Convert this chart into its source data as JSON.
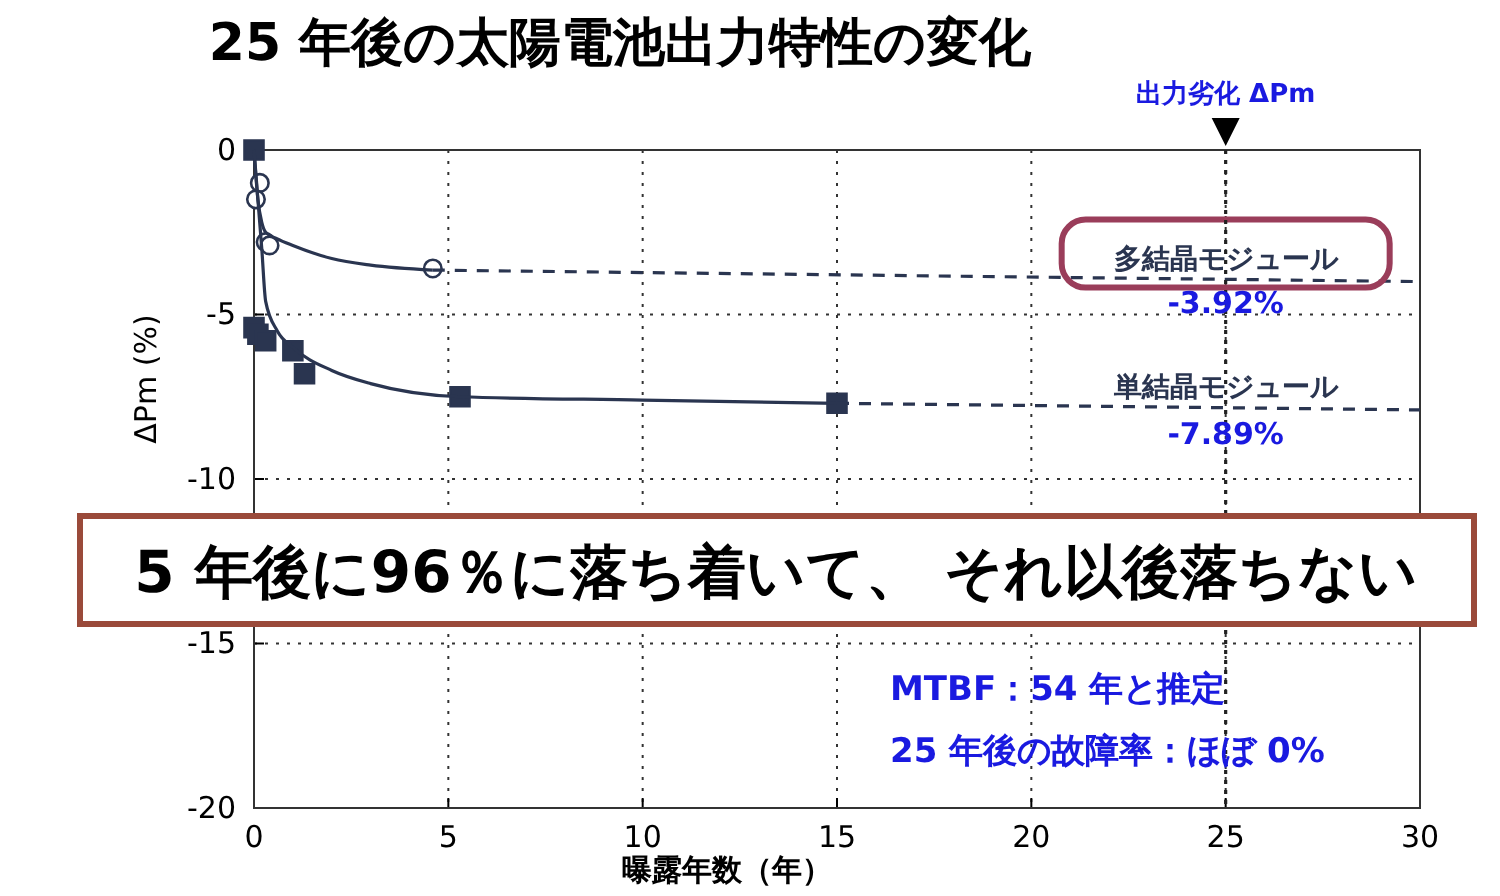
{
  "chart_data": {
    "type": "line",
    "title": "25 年後の太陽電池出力特性の変化",
    "xlabel": "曝露年数（年）",
    "ylabel": "ΔPm (%)",
    "xlim": [
      0,
      30
    ],
    "ylim": [
      -20,
      0
    ],
    "xticks": [
      0,
      5,
      10,
      15,
      20,
      25,
      30
    ],
    "yticks": [
      -20,
      -15,
      -10,
      -5,
      0
    ],
    "grid": true,
    "series": [
      {
        "type": "scatter",
        "marker": "circle",
        "color": "#2a3550",
        "x": [
          0.15,
          0.05,
          0.3,
          0.4,
          4.6
        ],
        "values": [
          -1,
          -1.5,
          -2.8,
          -2.9,
          -3.6
        ]
      },
      {
        "color": "#2a3550",
        "line_style": "solid",
        "x": [
          0,
          0.1,
          0.2,
          0.3,
          0.6,
          1,
          2,
          3,
          4.6
        ],
        "values": [
          0,
          -1.5,
          -2.2,
          -2.5,
          -2.7,
          -2.9,
          -3.3,
          -3.5,
          -3.65
        ]
      },
      {
        "name": "多結晶モジュール",
        "color": "#2a3550",
        "line_style": "dashed",
        "x": [
          4.6,
          30
        ],
        "values": [
          -3.65,
          -4.0
        ]
      },
      {
        "type": "scatter",
        "marker": "square",
        "color": "#2a3550",
        "x": [
          0,
          0,
          0.1,
          0.3,
          1,
          1.3,
          5.3,
          15
        ],
        "values": [
          0,
          -5.4,
          -5.6,
          -5.8,
          -6.1,
          -6.8,
          -7.5,
          -7.7
        ]
      },
      {
        "color": "#2a3550",
        "line_style": "solid",
        "x": [
          0,
          0.2,
          0.3,
          0.6,
          1,
          2,
          3,
          5.3,
          10,
          15
        ],
        "values": [
          0,
          -3,
          -4.6,
          -5.5,
          -6,
          -6.7,
          -7.1,
          -7.5,
          -7.6,
          -7.7
        ]
      },
      {
        "name": "単結晶モジュール",
        "color": "#2a3550",
        "line_style": "dashed",
        "x": [
          15,
          30
        ],
        "values": [
          -7.7,
          -7.9
        ]
      }
    ],
    "ref_lines": [
      {
        "axis": "x",
        "value": 25,
        "label": "出力劣化 ΔPm"
      }
    ],
    "annotations": [
      {
        "text": "-3.92%",
        "x": 25,
        "y": -3.92
      },
      {
        "text": "-7.89%",
        "x": 25,
        "y": -7.89
      },
      "5 年後に96％に落ち着いて、 それ以後落ちない",
      "MTBF：54 年と推定",
      "25 年後の故障率：ほぼ 0%"
    ]
  }
}
